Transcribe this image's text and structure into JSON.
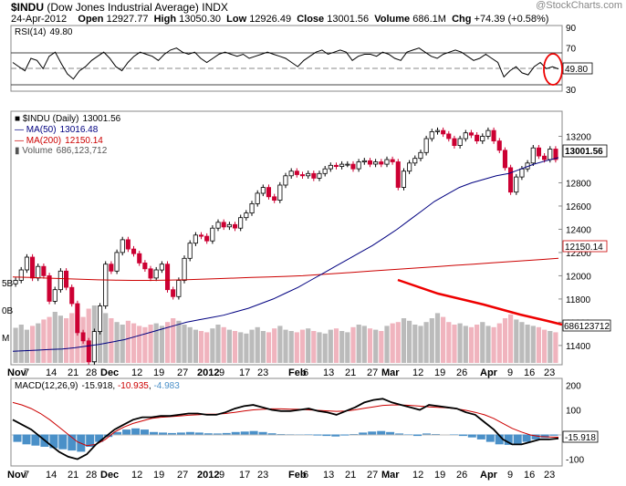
{
  "header": {
    "symbol": "$INDU",
    "name": "(Dow Jones Industrial Average)",
    "exchange": "INDX",
    "date": "24-Apr-2012",
    "open_label": "Open",
    "open": "12927.77",
    "high_label": "High",
    "high": "13050.30",
    "low_label": "Low",
    "low": "12926.49",
    "close_label": "Close",
    "close": "13001.56",
    "volume_label": "Volume",
    "volume": "686.1M",
    "chg_label": "Chg",
    "chg": "+74.39 (+0.58%)",
    "watermark": "@StockCharts.com"
  },
  "colors": {
    "up": "#000000",
    "down": "#cc0033",
    "ma50": "#000080",
    "ma200": "#cc0000",
    "vol_up": "#bbbbbb",
    "vol_down": "#f0b4be",
    "macd_hist": "#4a90c8",
    "annotation": "#ee0000"
  },
  "chart_data": [
    {
      "type": "line",
      "title": "RSI(14) 49.80",
      "legend": "RSI(14)",
      "legend_value": "49.80",
      "ylim": [
        30,
        90
      ],
      "yticks": [
        "90",
        "70",
        "50",
        "30"
      ],
      "last_label": "49.80",
      "values": [
        56,
        52,
        48,
        60,
        58,
        50,
        62,
        66,
        55,
        45,
        40,
        48,
        52,
        58,
        62,
        66,
        60,
        52,
        48,
        56,
        62,
        66,
        64,
        62,
        58,
        64,
        68,
        70,
        66,
        64,
        66,
        60,
        56,
        60,
        64,
        66,
        64,
        62,
        64,
        60,
        62,
        64,
        66,
        64,
        62,
        60,
        56,
        52,
        58,
        62,
        66,
        68,
        64,
        66,
        68,
        66,
        58,
        62,
        64,
        64,
        62,
        66,
        64,
        60,
        58,
        66,
        68,
        70,
        66,
        62,
        60,
        64,
        66,
        68,
        66,
        62,
        58,
        60,
        64,
        60,
        56,
        42,
        48,
        52,
        46,
        44,
        52,
        56,
        50,
        52,
        49.8
      ]
    },
    {
      "type": "candlestick",
      "title": "$INDU (Daily) 13001.56",
      "legend": [
        {
          "name": "$INDU (Daily)",
          "value": "13001.56"
        },
        {
          "name": "MA(50)",
          "value": "13016.48"
        },
        {
          "name": "MA(200)",
          "value": "12150.14"
        },
        {
          "name": "Volume",
          "value": "686,123,712"
        }
      ],
      "ylim": [
        11250,
        13400
      ],
      "yticks": [
        "13200",
        "12800",
        "12600",
        "12400",
        "12200",
        "12000",
        "11800",
        "11600",
        "11400"
      ],
      "price_label": "13001.56",
      "ma200_label": "12150.14",
      "volume_label": "686123712",
      "vol_axis_labels": [
        "5B",
        "0B",
        "M"
      ],
      "x_labels": [
        "Nov",
        "7",
        "14",
        "21",
        "28",
        "Dec",
        "12",
        "19",
        "27",
        "2012",
        "9",
        "17",
        "23",
        "Feb",
        "6",
        "13",
        "21",
        "27",
        "Mar",
        "12",
        "19",
        "26",
        "Apr",
        "9",
        "16",
        "23"
      ],
      "close": [
        11960,
        12050,
        12160,
        11980,
        12080,
        12000,
        11780,
        11880,
        12040,
        11900,
        11760,
        11510,
        11440,
        11260,
        11520,
        11740,
        12100,
        12040,
        12200,
        12310,
        12230,
        12190,
        12110,
        12060,
        11980,
        12050,
        12100,
        11880,
        11820,
        11960,
        12150,
        12280,
        12350,
        12340,
        12300,
        12410,
        12460,
        12420,
        12440,
        12410,
        12500,
        12540,
        12620,
        12710,
        12760,
        12680,
        12650,
        12780,
        12860,
        12900,
        12870,
        12860,
        12880,
        12840,
        12880,
        12920,
        12950,
        12940,
        12960,
        12960,
        12920,
        12980,
        12990,
        12960,
        12980,
        12960,
        13000,
        12980,
        12760,
        12900,
        12970,
        13010,
        13060,
        13180,
        13240,
        13250,
        13220,
        13180,
        13120,
        13180,
        13230,
        13210,
        13160,
        13200,
        13250,
        13160,
        13080,
        12930,
        12720,
        12850,
        12920,
        12970,
        13100,
        13030,
        13000,
        13090,
        13000
      ],
      "ma50": [
        11350,
        11355,
        11360,
        11365,
        11370,
        11380,
        11395,
        11410,
        11430,
        11450,
        11480,
        11510,
        11540,
        11570,
        11600,
        11620,
        11640,
        11660,
        11690,
        11720,
        11760,
        11800,
        11850,
        11900,
        11960,
        12020,
        12080,
        12140,
        12200,
        12260,
        12330,
        12400,
        12480,
        12560,
        12640,
        12700,
        12760,
        12800,
        12830,
        12860,
        12880,
        12920,
        12960,
        12990,
        13016
      ],
      "ma200": [
        11990,
        11985,
        11980,
        11975,
        11970,
        11965,
        11962,
        11960,
        11960,
        11962,
        11965,
        11970,
        11975,
        11980,
        11985,
        11990,
        11995,
        12000,
        12010,
        12020,
        12030,
        12040,
        12050,
        12060,
        12070,
        12080,
        12090,
        12100,
        12110,
        12120,
        12130,
        12140,
        12150
      ],
      "volume": [
        55,
        60,
        52,
        58,
        62,
        68,
        72,
        80,
        74,
        70,
        78,
        76,
        72,
        85,
        90,
        82,
        78,
        70,
        64,
        60,
        66,
        62,
        58,
        56,
        60,
        62,
        58,
        64,
        70,
        66,
        60,
        56,
        52,
        50,
        48,
        54,
        60,
        56,
        52,
        50,
        48,
        46,
        52,
        56,
        50,
        48,
        54,
        58,
        52,
        50,
        48,
        52,
        54,
        50,
        48,
        46,
        52,
        54,
        50,
        48,
        56,
        60,
        58,
        54,
        52,
        50,
        58,
        62,
        64,
        70,
        66,
        60,
        58,
        64,
        70,
        78,
        72,
        64,
        60,
        62,
        58,
        56,
        60,
        64,
        58,
        56,
        62,
        70,
        76,
        68,
        64,
        60,
        58,
        56,
        52,
        50,
        48
      ]
    },
    {
      "type": "line",
      "title": "MACD(12,26,9) -15.918, -10.935, -4.983",
      "legend": "MACD(12,26,9)",
      "legend_values": [
        "-15.918",
        "-10.935",
        "-4.983"
      ],
      "ylim": [
        -120,
        220
      ],
      "yticks": [
        "200",
        "100",
        "-100"
      ],
      "last_label": "-15.918",
      "macd": [
        60,
        40,
        20,
        -10,
        -40,
        -70,
        -90,
        -100,
        -80,
        -40,
        -10,
        20,
        40,
        60,
        70,
        70,
        75,
        75,
        80,
        85,
        85,
        80,
        80,
        90,
        105,
        115,
        120,
        110,
        100,
        95,
        95,
        100,
        105,
        95,
        90,
        80,
        95,
        110,
        130,
        140,
        145,
        130,
        120,
        110,
        100,
        120,
        115,
        110,
        105,
        90,
        80,
        50,
        20,
        -20,
        -40,
        -40,
        -30,
        -20,
        -20,
        -15.918
      ],
      "signal": [
        130,
        120,
        105,
        85,
        60,
        30,
        0,
        -30,
        -45,
        -40,
        -20,
        10,
        30,
        45,
        55,
        65,
        70,
        72,
        75,
        78,
        80,
        82,
        82,
        85,
        90,
        95,
        100,
        102,
        104,
        104,
        103,
        102,
        100,
        98,
        96,
        94,
        95,
        100,
        106,
        112,
        118,
        120,
        120,
        118,
        115,
        112,
        110,
        108,
        104,
        98,
        90,
        80,
        65,
        45,
        25,
        10,
        -2,
        -8,
        -10,
        -10.935
      ],
      "histogram": [
        -30,
        -40,
        -45,
        -50,
        -55,
        -60,
        -65,
        -70,
        -50,
        -30,
        -10,
        10,
        20,
        25,
        20,
        10,
        8,
        6,
        8,
        10,
        8,
        5,
        4,
        6,
        10,
        12,
        14,
        10,
        5,
        2,
        1,
        -1,
        -2,
        -4,
        -6,
        -8,
        -4,
        2,
        8,
        12,
        14,
        10,
        4,
        -2,
        -6,
        4,
        2,
        0,
        -2,
        -6,
        -12,
        -20,
        -30,
        -40,
        -42,
        -38,
        -30,
        -20,
        -14,
        -4.983
      ]
    }
  ]
}
